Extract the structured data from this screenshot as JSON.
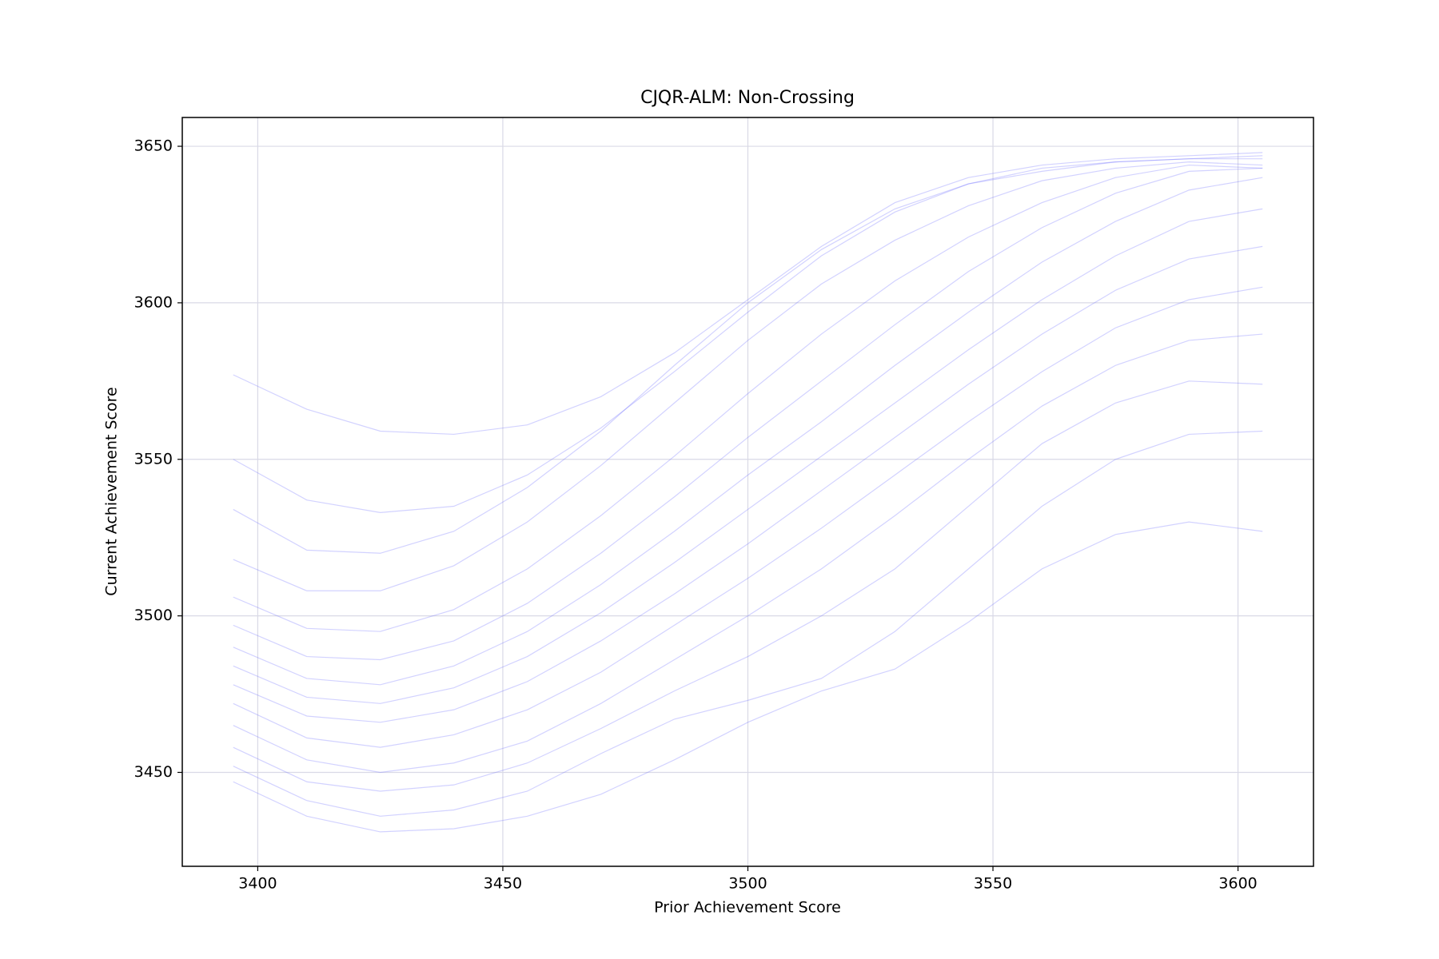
{
  "chart_data": {
    "type": "line",
    "title": "CJQR-ALM: Non-Crossing",
    "x_label": "Prior Achievement Score",
    "y_label": "Current Achievement Score",
    "x": [
      3395,
      3410,
      3425,
      3440,
      3455,
      3470,
      3485,
      3500,
      3515,
      3530,
      3545,
      3560,
      3575,
      3590,
      3605
    ],
    "series": [
      {
        "color": "#6a6aff",
        "values": [
          3447,
          3436,
          3431,
          3432,
          3436,
          3443,
          3454,
          3466,
          3476,
          3483,
          3498,
          3515,
          3526,
          3530,
          3527
        ]
      },
      {
        "color": "#6a6aff",
        "values": [
          3452,
          3441,
          3436,
          3438,
          3444,
          3456,
          3467,
          3473,
          3480,
          3495,
          3515,
          3535,
          3550,
          3558,
          3559
        ]
      },
      {
        "color": "#6a6aff",
        "values": [
          3458,
          3447,
          3444,
          3446,
          3453,
          3464,
          3476,
          3487,
          3500,
          3515,
          3535,
          3555,
          3568,
          3575,
          3574
        ]
      },
      {
        "color": "#6a6aff",
        "values": [
          3465,
          3454,
          3450,
          3453,
          3460,
          3472,
          3486,
          3500,
          3515,
          3532,
          3550,
          3567,
          3580,
          3588,
          3590
        ]
      },
      {
        "color": "#6a6aff",
        "values": [
          3472,
          3461,
          3458,
          3462,
          3470,
          3482,
          3497,
          3512,
          3528,
          3545,
          3562,
          3578,
          3592,
          3601,
          3605
        ]
      },
      {
        "color": "#6a6aff",
        "values": [
          3478,
          3468,
          3466,
          3470,
          3479,
          3492,
          3507,
          3523,
          3540,
          3557,
          3574,
          3590,
          3604,
          3614,
          3618
        ]
      },
      {
        "color": "#6a6aff",
        "values": [
          3484,
          3474,
          3472,
          3477,
          3487,
          3501,
          3517,
          3534,
          3551,
          3568,
          3585,
          3601,
          3615,
          3626,
          3630
        ]
      },
      {
        "color": "#6a6aff",
        "values": [
          3490,
          3480,
          3478,
          3484,
          3495,
          3510,
          3527,
          3545,
          3562,
          3580,
          3597,
          3613,
          3626,
          3636,
          3640
        ]
      },
      {
        "color": "#6a6aff",
        "values": [
          3497,
          3487,
          3486,
          3492,
          3504,
          3520,
          3538,
          3557,
          3575,
          3593,
          3610,
          3624,
          3635,
          3642,
          3643
        ]
      },
      {
        "color": "#6a6aff",
        "values": [
          3506,
          3496,
          3495,
          3502,
          3515,
          3532,
          3551,
          3571,
          3590,
          3607,
          3621,
          3632,
          3640,
          3644,
          3643
        ]
      },
      {
        "color": "#6a6aff",
        "values": [
          3518,
          3508,
          3508,
          3516,
          3530,
          3548,
          3568,
          3588,
          3606,
          3620,
          3631,
          3639,
          3643,
          3645,
          3644
        ]
      },
      {
        "color": "#6a6aff",
        "values": [
          3534,
          3521,
          3520,
          3527,
          3541,
          3559,
          3580,
          3600,
          3617,
          3630,
          3638,
          3642,
          3645,
          3646,
          3646
        ]
      },
      {
        "color": "#6a6aff",
        "values": [
          3550,
          3537,
          3533,
          3535,
          3545,
          3560,
          3578,
          3597,
          3615,
          3629,
          3638,
          3643,
          3645,
          3646,
          3647
        ]
      },
      {
        "color": "#6a6aff",
        "values": [
          3577,
          3566,
          3559,
          3558,
          3561,
          3570,
          3584,
          3601,
          3618,
          3632,
          3640,
          3644,
          3646,
          3647,
          3648
        ]
      }
    ],
    "xlim": [
      3384.6,
      3615.4
    ],
    "ylim": [
      3420,
      3659.2
    ],
    "xticks": [
      3400,
      3450,
      3500,
      3550,
      3600
    ],
    "yticks": [
      3450,
      3500,
      3550,
      3600,
      3650
    ],
    "grid": true
  }
}
